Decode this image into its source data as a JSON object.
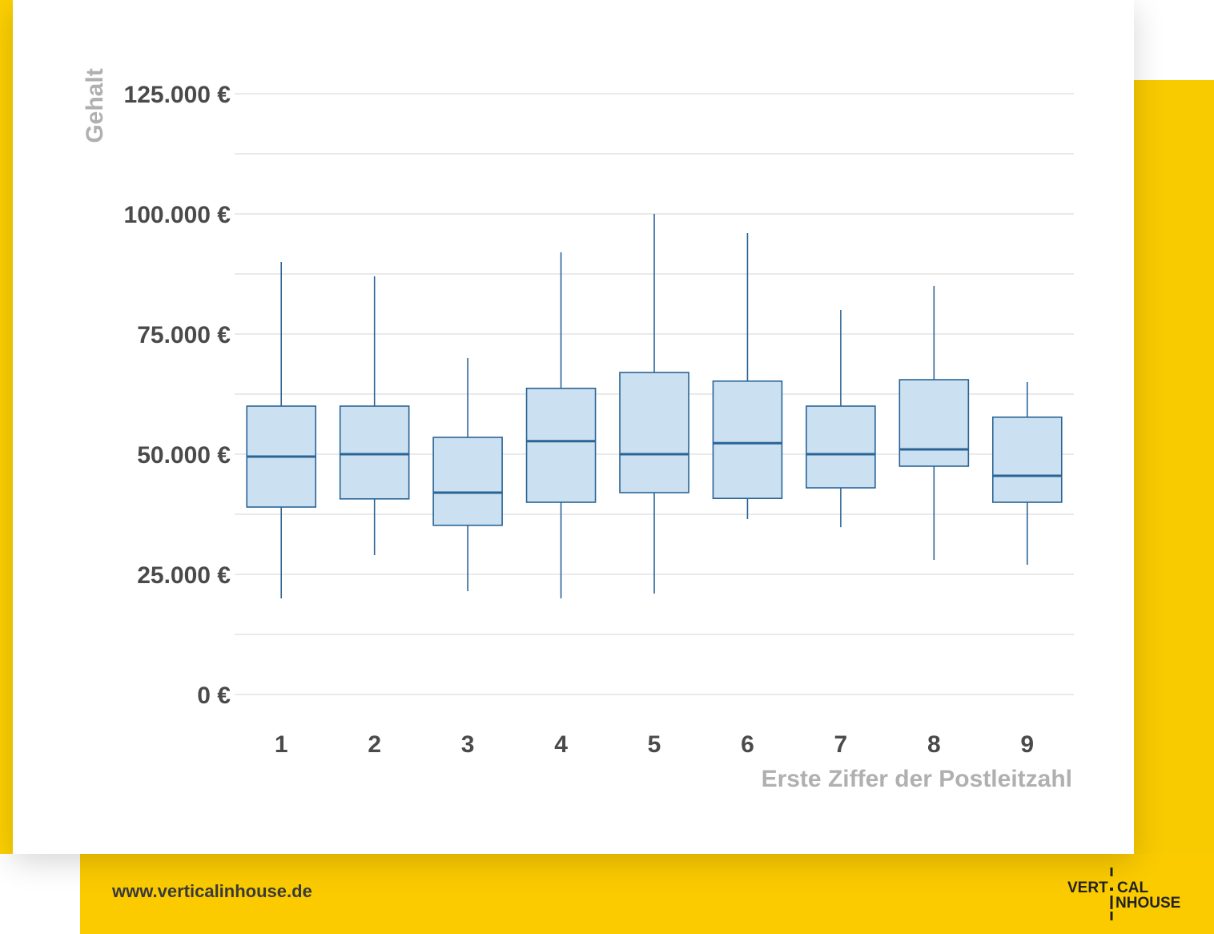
{
  "footer": {
    "url": "www.verticalinhouse.de"
  },
  "logo": {
    "line1_left": "VERT",
    "line1_right": "CAL",
    "line2": "NHOUSE"
  },
  "colors": {
    "accent_yellow": "#fcd000",
    "box_fill": "#cbe0f0",
    "box_stroke": "#2a6496",
    "grid": "#dedede",
    "axis_label": "#b0b0b0",
    "tick_text": "#4a4a4a"
  },
  "chart_data": {
    "type": "boxplot",
    "title": "",
    "xlabel": "Erste Ziffer der Postleitzahl",
    "ylabel": "Gehalt",
    "ylim": [
      0,
      125000
    ],
    "y_ticks": [
      0,
      25000,
      50000,
      75000,
      100000,
      125000
    ],
    "y_tick_labels": [
      "0 €",
      "25.000 €",
      "50.000 €",
      "75.000 €",
      "100.000 €",
      "125.000 €"
    ],
    "grid": true,
    "categories": [
      "1",
      "2",
      "3",
      "4",
      "5",
      "6",
      "7",
      "8",
      "9"
    ],
    "boxes": [
      {
        "category": "1",
        "min": 20000,
        "q1": 39000,
        "median": 49500,
        "q3": 60000,
        "max": 90000
      },
      {
        "category": "2",
        "min": 29000,
        "q1": 40700,
        "median": 50000,
        "q3": 60000,
        "max": 87000
      },
      {
        "category": "3",
        "min": 21500,
        "q1": 35200,
        "median": 42000,
        "q3": 53500,
        "max": 70000
      },
      {
        "category": "4",
        "min": 20000,
        "q1": 40000,
        "median": 52700,
        "q3": 63700,
        "max": 92000
      },
      {
        "category": "5",
        "min": 21000,
        "q1": 42000,
        "median": 50000,
        "q3": 67000,
        "max": 100000
      },
      {
        "category": "6",
        "min": 36500,
        "q1": 40800,
        "median": 52300,
        "q3": 65200,
        "max": 96000
      },
      {
        "category": "7",
        "min": 34800,
        "q1": 43000,
        "median": 50000,
        "q3": 60000,
        "max": 80000
      },
      {
        "category": "8",
        "min": 28000,
        "q1": 47500,
        "median": 51000,
        "q3": 65500,
        "max": 85000
      },
      {
        "category": "9",
        "min": 27000,
        "q1": 40000,
        "median": 45500,
        "q3": 57700,
        "max": 65000
      }
    ]
  }
}
